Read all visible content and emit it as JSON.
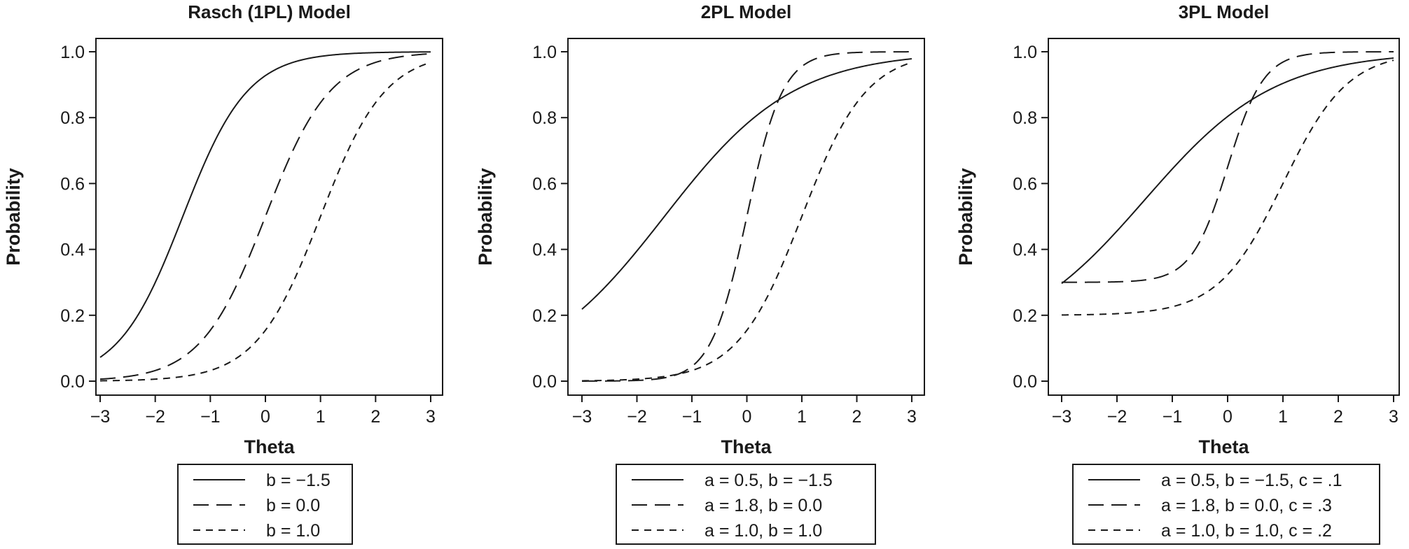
{
  "chart_data": [
    {
      "type": "line",
      "model": "1pl",
      "title": "Rasch (1PL) Model",
      "xlabel": "Theta",
      "ylabel": "Probability",
      "xlim": [
        -3,
        3
      ],
      "ylim": [
        0,
        1
      ],
      "xticks": [
        -3,
        -2,
        -1,
        0,
        1,
        2,
        3
      ],
      "xtick_labels": [
        "−3",
        "−2",
        "−1",
        "0",
        "1",
        "2",
        "3"
      ],
      "yticks": [
        0,
        0.2,
        0.4,
        0.6,
        0.8,
        1.0
      ],
      "ytick_labels": [
        "0.0",
        "0.2",
        "0.4",
        "0.6",
        "0.8",
        "1.0"
      ],
      "legend_position": "bottom",
      "series": [
        {
          "name": "b = −1.5",
          "style": "solid",
          "a": 1.7,
          "b": -1.5,
          "c": 0
        },
        {
          "name": "b = 0.0",
          "style": "long-dash",
          "a": 1.7,
          "b": 0.0,
          "c": 0
        },
        {
          "name": "b = 1.0",
          "style": "short-dash",
          "a": 1.7,
          "b": 1.0,
          "c": 0
        }
      ]
    },
    {
      "type": "line",
      "model": "2pl",
      "title": "2PL Model",
      "xlabel": "Theta",
      "ylabel": "Probability",
      "xlim": [
        -3,
        3
      ],
      "ylim": [
        0,
        1
      ],
      "xticks": [
        -3,
        -2,
        -1,
        0,
        1,
        2,
        3
      ],
      "xtick_labels": [
        "−3",
        "−2",
        "−1",
        "0",
        "1",
        "2",
        "3"
      ],
      "yticks": [
        0,
        0.2,
        0.4,
        0.6,
        0.8,
        1.0
      ],
      "ytick_labels": [
        "0.0",
        "0.2",
        "0.4",
        "0.6",
        "0.8",
        "1.0"
      ],
      "legend_position": "bottom",
      "series": [
        {
          "name": "a = 0.5, b = −1.5",
          "style": "solid",
          "a": 0.5,
          "b": -1.5,
          "c": 0
        },
        {
          "name": "a = 1.8, b = 0.0",
          "style": "long-dash",
          "a": 1.8,
          "b": 0.0,
          "c": 0
        },
        {
          "name": "a = 1.0, b = 1.0",
          "style": "short-dash",
          "a": 1.0,
          "b": 1.0,
          "c": 0
        }
      ]
    },
    {
      "type": "line",
      "model": "3pl",
      "title": "3PL Model",
      "xlabel": "Theta",
      "ylabel": "Probability",
      "xlim": [
        -3,
        3
      ],
      "ylim": [
        0,
        1
      ],
      "xticks": [
        -3,
        -2,
        -1,
        0,
        1,
        2,
        3
      ],
      "xtick_labels": [
        "−3",
        "−2",
        "−1",
        "0",
        "1",
        "2",
        "3"
      ],
      "yticks": [
        0,
        0.2,
        0.4,
        0.6,
        0.8,
        1.0
      ],
      "ytick_labels": [
        "0.0",
        "0.2",
        "0.4",
        "0.6",
        "0.8",
        "1.0"
      ],
      "legend_position": "bottom",
      "series": [
        {
          "name": "a = 0.5, b = −1.5, c = .1",
          "style": "solid",
          "a": 0.5,
          "b": -1.5,
          "c": 0.1
        },
        {
          "name": "a = 1.8, b = 0.0, c = .3",
          "style": "long-dash",
          "a": 1.8,
          "b": 0.0,
          "c": 0.3
        },
        {
          "name": "a = 1.0, b = 1.0, c = .2",
          "style": "short-dash",
          "a": 1.0,
          "b": 1.0,
          "c": 0.2
        }
      ]
    }
  ]
}
